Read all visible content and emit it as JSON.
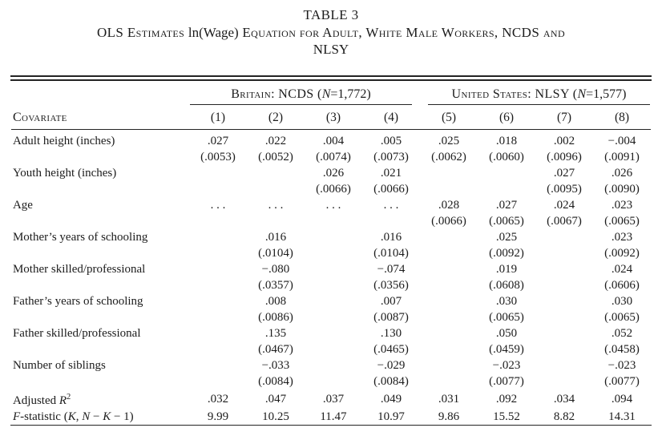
{
  "title": "TABLE 3",
  "subtitle": {
    "part1": "OLS Estimates ",
    "math": "ln(Wage)",
    "part2": " Equation for Adult, White Male Workers, NCDS and",
    "part3": "NLSY"
  },
  "header": {
    "covariate_label": "Covariate",
    "groups": [
      {
        "prefix": "Britain: NCDS (",
        "n": "N",
        "suffix": "=1,772)"
      },
      {
        "prefix": "United States: NLSY (",
        "n": "N",
        "suffix": "=1,577)"
      }
    ],
    "cols": [
      "(1)",
      "(2)",
      "(3)",
      "(4)",
      "(5)",
      "(6)",
      "(7)",
      "(8)"
    ]
  },
  "table": {
    "rows": [
      {
        "label": "Adult height (inches)",
        "est": [
          ".027",
          ".022",
          ".004",
          ".005",
          ".025",
          ".018",
          ".002",
          "−.004"
        ],
        "se": [
          "(.0053)",
          "(.0052)",
          "(.0074)",
          "(.0073)",
          "(.0062)",
          "(.0060)",
          "(.0096)",
          "(.0091)"
        ]
      },
      {
        "label": "Youth height (inches)",
        "est": [
          "",
          "",
          ".026",
          ".021",
          "",
          "",
          ".027",
          ".026"
        ],
        "se": [
          "",
          "",
          "(.0066)",
          "(.0066)",
          "",
          "",
          "(.0095)",
          "(.0090)"
        ]
      },
      {
        "label": "Age",
        "est": [
          ". . .",
          ". . .",
          ". . .",
          ". . .",
          ".028",
          ".027",
          ".024",
          ".023"
        ],
        "se": [
          "",
          "",
          "",
          "",
          "(.0066)",
          "(.0065)",
          "(.0067)",
          "(.0065)"
        ]
      },
      {
        "label": "Mother’s years of schooling",
        "est": [
          "",
          ".016",
          "",
          ".016",
          "",
          ".025",
          "",
          ".023"
        ],
        "se": [
          "",
          "(.0104)",
          "",
          "(.0104)",
          "",
          "(.0092)",
          "",
          "(.0092)"
        ]
      },
      {
        "label": "Mother skilled/professional",
        "est": [
          "",
          "−.080",
          "",
          "−.074",
          "",
          ".019",
          "",
          ".024"
        ],
        "se": [
          "",
          "(.0357)",
          "",
          "(.0356)",
          "",
          "(.0608)",
          "",
          "(.0606)"
        ]
      },
      {
        "label": "Father’s years of schooling",
        "est": [
          "",
          ".008",
          "",
          ".007",
          "",
          ".030",
          "",
          ".030"
        ],
        "se": [
          "",
          "(.0086)",
          "",
          "(.0087)",
          "",
          "(.0065)",
          "",
          "(.0065)"
        ]
      },
      {
        "label": "Father skilled/professional",
        "est": [
          "",
          ".135",
          "",
          ".130",
          "",
          ".050",
          "",
          ".052"
        ],
        "se": [
          "",
          "(.0467)",
          "",
          "(.0465)",
          "",
          "(.0459)",
          "",
          "(.0458)"
        ]
      },
      {
        "label": "Number of siblings",
        "est": [
          "",
          "−.033",
          "",
          "−.029",
          "",
          "−.023",
          "",
          "−.023"
        ],
        "se": [
          "",
          "(.0084)",
          "",
          "(.0084)",
          "",
          "(.0077)",
          "",
          "(.0077)"
        ]
      }
    ],
    "footer_rows": [
      {
        "label_parts": {
          "p1": "Adjusted ",
          "r": "R",
          "sup": "2"
        },
        "values": [
          ".032",
          ".047",
          ".037",
          ".049",
          ".031",
          ".092",
          ".034",
          ".094"
        ]
      },
      {
        "label_parts": {
          "f": "F",
          "p1": "-statistic (",
          "k1": "K",
          "p2": ", ",
          "n": "N",
          "p3": " − ",
          "k2": "K",
          "p4": " − 1)"
        },
        "values": [
          "9.99",
          "10.25",
          "11.47",
          "10.97",
          "9.86",
          "15.52",
          "8.82",
          "14.31"
        ]
      }
    ]
  }
}
